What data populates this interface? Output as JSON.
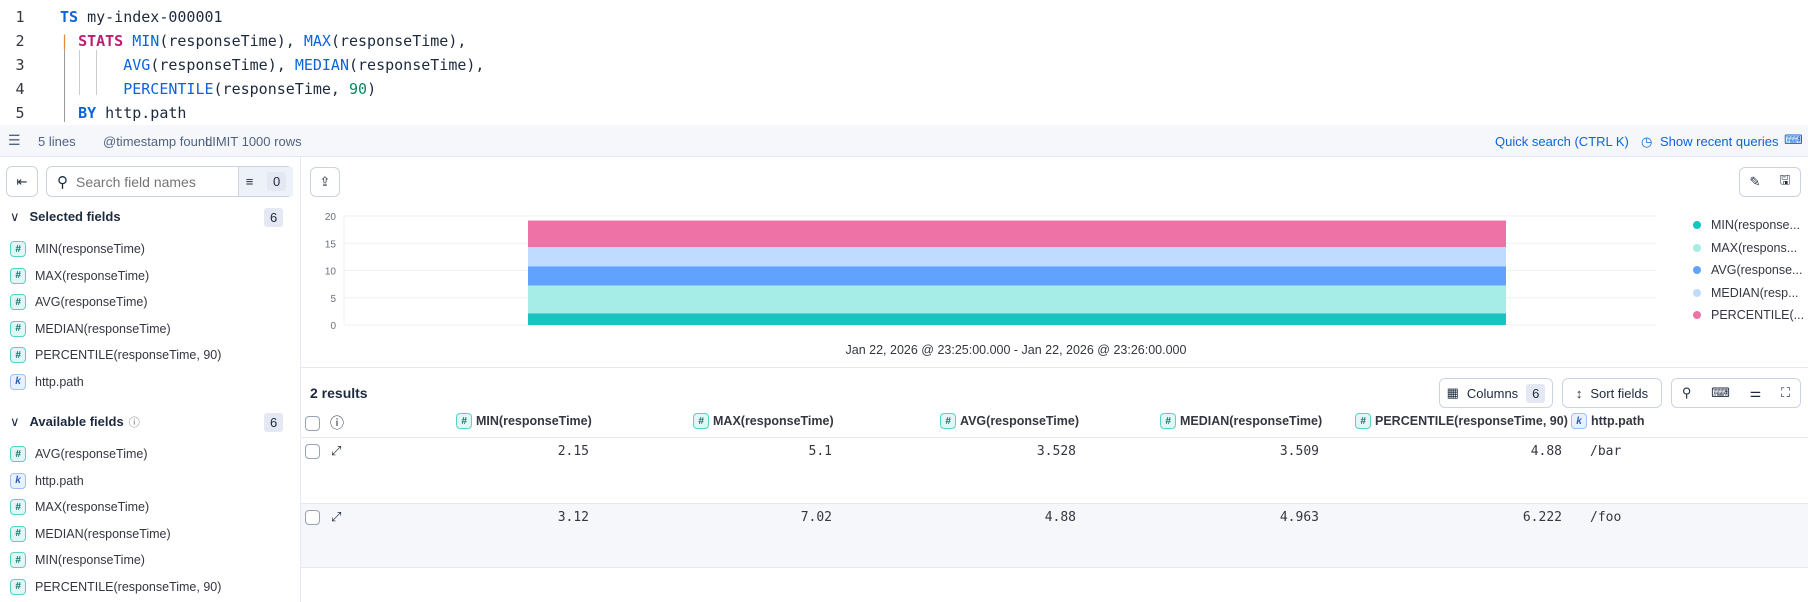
{
  "editor": {
    "lines": [
      {
        "n": "1",
        "tokens": [
          {
            "t": "TS",
            "c": "kw"
          },
          {
            "t": " my-index-000001",
            "c": ""
          }
        ]
      },
      {
        "n": "2",
        "tokens": [
          {
            "t": "| ",
            "c": "pipe"
          },
          {
            "t": "STATS",
            "c": "kw2"
          },
          {
            "t": " ",
            "c": ""
          },
          {
            "t": "MIN",
            "c": "fn"
          },
          {
            "t": "(responseTime), ",
            "c": ""
          },
          {
            "t": "MAX",
            "c": "fn"
          },
          {
            "t": "(responseTime),",
            "c": ""
          }
        ]
      },
      {
        "n": "3",
        "tokens": [
          {
            "t": "       ",
            "c": ""
          },
          {
            "t": "AVG",
            "c": "fn"
          },
          {
            "t": "(responseTime), ",
            "c": ""
          },
          {
            "t": "MEDIAN",
            "c": "fn"
          },
          {
            "t": "(responseTime),",
            "c": ""
          }
        ]
      },
      {
        "n": "4",
        "tokens": [
          {
            "t": "       ",
            "c": ""
          },
          {
            "t": "PERCENTILE",
            "c": "fn"
          },
          {
            "t": "(responseTime, ",
            "c": ""
          },
          {
            "t": "90",
            "c": "num"
          },
          {
            "t": ")",
            "c": ""
          }
        ]
      },
      {
        "n": "5",
        "tokens": [
          {
            "t": "  ",
            "c": ""
          },
          {
            "t": "BY",
            "c": "kw"
          },
          {
            "t": " http.path",
            "c": ""
          }
        ]
      }
    ]
  },
  "status": {
    "lines": "5 lines",
    "timestamp": "@timestamp found",
    "limit": "LIMIT 1000 rows",
    "quick_search": "Quick search (CTRL K)",
    "recent": "Show recent queries"
  },
  "sidebar": {
    "search_placeholder": "Search field names",
    "filter_count": "0",
    "selected_title": "Selected fields",
    "selected_count": "6",
    "selected": [
      {
        "type": "number",
        "label": "MIN(responseTime)"
      },
      {
        "type": "number",
        "label": "MAX(responseTime)"
      },
      {
        "type": "number",
        "label": "AVG(responseTime)"
      },
      {
        "type": "number",
        "label": "MEDIAN(responseTime)"
      },
      {
        "type": "number",
        "label": "PERCENTILE(responseTime, 90)"
      },
      {
        "type": "keyword",
        "label": "http.path"
      }
    ],
    "available_title": "Available fields",
    "available_count": "6",
    "available": [
      {
        "type": "number",
        "label": "AVG(responseTime)"
      },
      {
        "type": "keyword",
        "label": "http.path"
      },
      {
        "type": "number",
        "label": "MAX(responseTime)"
      },
      {
        "type": "number",
        "label": "MEDIAN(responseTime)"
      },
      {
        "type": "number",
        "label": "MIN(responseTime)"
      },
      {
        "type": "number",
        "label": "PERCENTILE(responseTime, 90)"
      }
    ]
  },
  "chart_data": {
    "type": "bar",
    "stacked": true,
    "ylabel": "MIN(...",
    "ylim": [
      0,
      20
    ],
    "yticks": [
      "0",
      "5",
      "10",
      "15",
      "20"
    ],
    "xlabel": "Jan 22, 2026 @ 23:25:00.000 - Jan 22, 2026 @ 23:26:00.000",
    "grid": true,
    "legend": "right",
    "series": [
      {
        "name": "MIN(response...",
        "value": 2.15,
        "color": "#16c5c0"
      },
      {
        "name": "MAX(respons...",
        "value": 5.1,
        "color": "#a6ede7"
      },
      {
        "name": "AVG(response...",
        "value": 3.528,
        "color": "#61a2ff"
      },
      {
        "name": "MEDIAN(resp...",
        "value": 3.509,
        "color": "#bfdbff"
      },
      {
        "name": "PERCENTILE(...",
        "value": 4.88,
        "color": "#ee72a6"
      }
    ]
  },
  "table": {
    "results": "2 results",
    "columns_label": "Columns",
    "columns_count": "6",
    "sort_label": "Sort fields",
    "headers": [
      {
        "type": "number",
        "label": "MIN(responseTime)"
      },
      {
        "type": "number",
        "label": "MAX(responseTime)"
      },
      {
        "type": "number",
        "label": "AVG(responseTime)"
      },
      {
        "type": "number",
        "label": "MEDIAN(responseTime)"
      },
      {
        "type": "number",
        "label": "PERCENTILE(responseTime, 90)"
      },
      {
        "type": "keyword",
        "label": "http.path"
      }
    ],
    "rows": [
      [
        "2.15",
        "5.1",
        "3.528",
        "3.509",
        "4.88",
        "/bar"
      ],
      [
        "3.12",
        "7.02",
        "4.88",
        "4.963",
        "6.222",
        "/foo"
      ]
    ]
  }
}
